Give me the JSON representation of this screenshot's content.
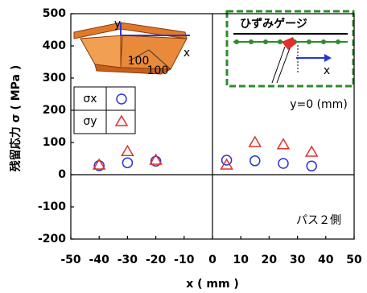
{
  "chart_data": {
    "type": "scatter",
    "x_label": "x ( mm )",
    "y_label": "残留応力 σ ( MPa )",
    "xlim": [
      -50,
      50
    ],
    "ylim": [
      -200,
      500
    ],
    "xticks": [
      -50,
      -40,
      -30,
      -20,
      -10,
      0,
      10,
      20,
      30,
      40,
      50
    ],
    "yticks": [
      -200,
      -100,
      0,
      100,
      200,
      300,
      400,
      500
    ],
    "series": [
      {
        "name": "σx",
        "color": "#2b35d6",
        "marker": "circle",
        "x": [
          -40,
          -30,
          -20,
          5,
          15,
          25,
          35
        ],
        "values": [
          28,
          37,
          42,
          45,
          43,
          35,
          27
        ]
      },
      {
        "name": "σy",
        "color": "#e0302a",
        "marker": "triangle",
        "x": [
          -40,
          -30,
          -20,
          5,
          15,
          25,
          35
        ],
        "values": [
          30,
          72,
          45,
          30,
          100,
          93,
          70
        ]
      }
    ],
    "annotations": [
      "y=0 (mm)",
      "パス２側",
      "ひずみゲージ",
      "y",
      "x",
      "100",
      "100",
      "x"
    ]
  }
}
